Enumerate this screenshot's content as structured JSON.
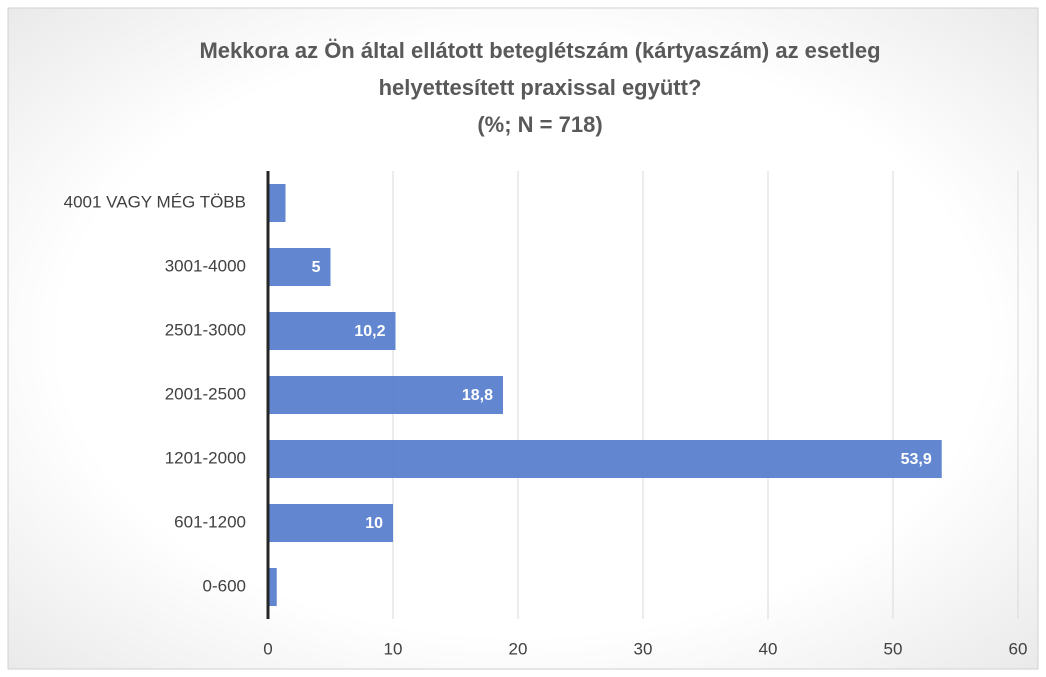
{
  "chart_data": {
    "type": "bar",
    "orientation": "horizontal",
    "title": [
      "Mekkora az Ön által ellátott beteglétszám (kártyaszám) az esetleg",
      "helyettesített praxissal együtt?"
    ],
    "subtitle": "(%; N = 718)",
    "categories": [
      "4001 VAGY MÉG TÖBB",
      "3001-4000",
      "2501-3000",
      "2001-2500",
      "1201-2000",
      "601-1200",
      "0-600"
    ],
    "values": [
      1.4,
      5,
      10.2,
      18.8,
      53.9,
      10,
      0.7
    ],
    "value_labels": [
      "1,4",
      "5",
      "10,2",
      "18,8",
      "53,9",
      "10",
      "0,7"
    ],
    "color": "#5b80cf",
    "xlim": [
      0,
      60
    ],
    "xticks": [
      0,
      10,
      20,
      30,
      40,
      50,
      60
    ],
    "grid": true
  }
}
